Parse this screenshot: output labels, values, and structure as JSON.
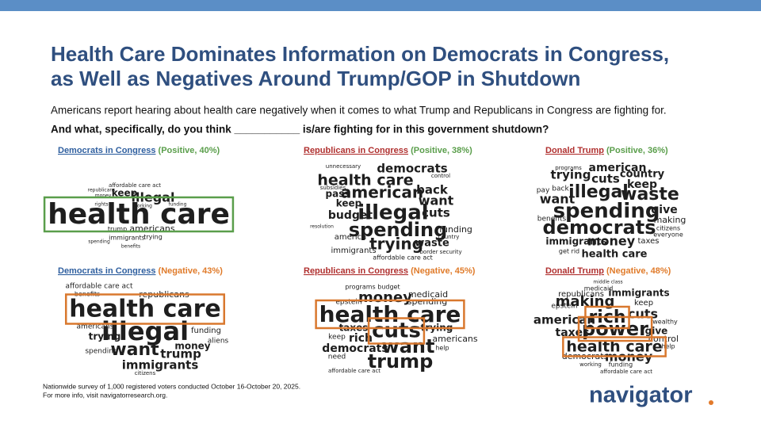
{
  "header": {
    "title_lines": [
      "Health Care Dominates Information on Democrats in Congress,",
      "as Well as Negatives Around Trump/GOP in Shutdown"
    ],
    "subtitle": "Americans report hearing about health care negatively when it comes to what Trump and Republicans in Congress are fighting for.",
    "question": "And what, specifically, do you think ___________ is/are fighting for in this government shutdown?"
  },
  "panels": [
    {
      "group": "Democrats in Congress",
      "label": "(Positive, 40%)",
      "words": [
        "health care",
        "illegal",
        "keep",
        "americans",
        "trump",
        "immigrants",
        "trying",
        "affordable care act",
        "republicans",
        "money",
        "rights",
        "working",
        "funding",
        "benefits",
        "spending"
      ]
    },
    {
      "group": "Republicans in Congress",
      "label": "(Positive, 38%)",
      "words": [
        "democrats",
        "health care",
        "back",
        "american",
        "pass",
        "subsidies",
        "keep",
        "illegal",
        "want",
        "cuts",
        "budget",
        "spending",
        "funding",
        "trying",
        "waste",
        "america",
        "immigrants",
        "affordable care act",
        "unnecessary",
        "control",
        "border security",
        "country",
        "resolution"
      ]
    },
    {
      "group": "Donald Trump",
      "label": "(Positive, 36%)",
      "words": [
        "american",
        "trying",
        "cuts",
        "country",
        "keep",
        "illegal",
        "waste",
        "want",
        "spending",
        "give",
        "democrats",
        "making",
        "immigrants",
        "money",
        "taxes",
        "health care",
        "programs",
        "pay",
        "back",
        "benefits",
        "citizens",
        "everyone",
        "get rid"
      ]
    },
    {
      "group": "Democrats in Congress",
      "label": "(Negative, 43%)",
      "words": [
        "affordable care act",
        "benefits",
        "republicans",
        "health care",
        "illegal",
        "americans",
        "trying",
        "funding",
        "want",
        "money",
        "trump",
        "immigrants",
        "spending",
        "aliens",
        "citizens"
      ]
    },
    {
      "group": "Republicans in Congress",
      "label": "(Negative, 45%)",
      "words": [
        "programs budget",
        "money",
        "medicaid",
        "spending",
        "epstein",
        "health care",
        "cuts",
        "taxes",
        "trying",
        "rich",
        "keep",
        "americans",
        "democrats",
        "want",
        "help",
        "trump",
        "need",
        "affordable care act"
      ]
    },
    {
      "group": "Donald Trump",
      "label": "(Negative, 48%)",
      "words": [
        "middle class",
        "republicans",
        "medicaid",
        "immigrants",
        "making",
        "keep",
        "epstein",
        "american",
        "rich",
        "cuts",
        "wealthy",
        "taxes",
        "power",
        "give",
        "control",
        "health care",
        "help",
        "democrats",
        "money",
        "working",
        "funding",
        "affordable care act"
      ]
    }
  ],
  "footnote": [
    "Nationwide survey of 1,000 registered voters conducted October 16-October 20, 2025.",
    "For more info, visit navigatorresearch.org."
  ],
  "logo": "navigator"
}
